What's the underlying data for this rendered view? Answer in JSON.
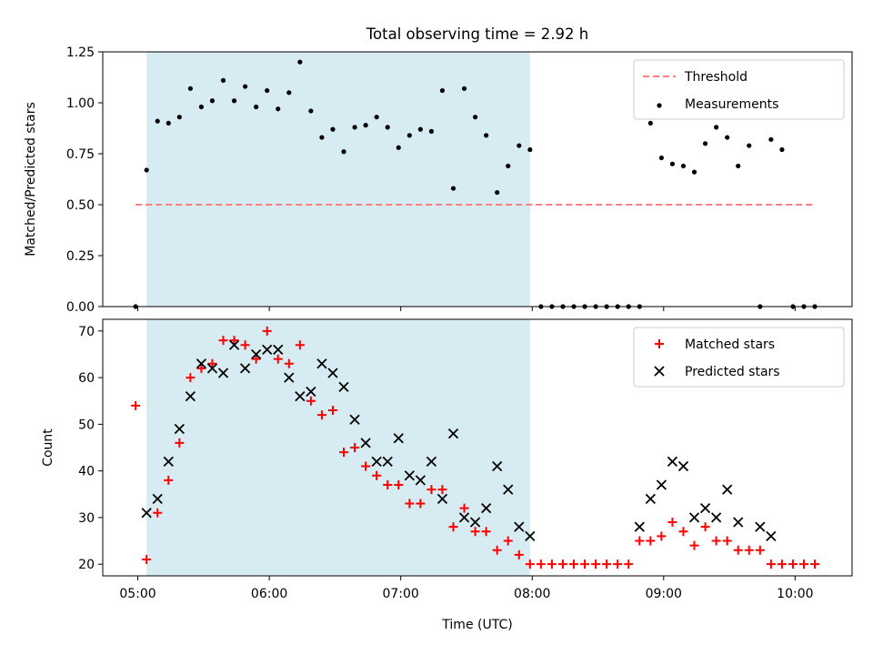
{
  "figure": {
    "suptitle": "Total observing time = 2.92 h"
  },
  "chart_data": [
    {
      "type": "scatter",
      "title": "Total observing time = 2.92 h",
      "xlabel": "",
      "ylabel": "Matched/Predicted stars",
      "xlim": [
        "04:44",
        "10:26"
      ],
      "ylim": [
        0,
        1.25
      ],
      "yticks": [
        "0.00",
        "0.25",
        "0.50",
        "0.75",
        "1.00",
        "1.25"
      ],
      "xticks": [
        "05:00",
        "06:00",
        "07:00",
        "08:00",
        "09:00",
        "10:00"
      ],
      "shaded_interval": {
        "x_start": "05:04",
        "x_end": "07:59",
        "color": "#add8e6"
      },
      "legend": {
        "placement": "top-right",
        "entries": [
          "Threshold",
          "Measurements"
        ]
      },
      "series": [
        {
          "name": "Threshold",
          "style": "dashed-line",
          "color": "#ff7f7f",
          "x": [
            "04:59",
            "10:09"
          ],
          "y": [
            0.5,
            0.5
          ]
        },
        {
          "name": "Measurements",
          "style": "points",
          "color": "#000000",
          "x": [
            "04:59",
            "05:04",
            "05:09",
            "05:14",
            "05:19",
            "05:24",
            "05:29",
            "05:34",
            "05:39",
            "05:44",
            "05:49",
            "05:54",
            "05:59",
            "06:04",
            "06:09",
            "06:14",
            "06:19",
            "06:24",
            "06:29",
            "06:34",
            "06:39",
            "06:44",
            "06:49",
            "06:54",
            "06:59",
            "07:04",
            "07:09",
            "07:14",
            "07:19",
            "07:24",
            "07:29",
            "07:34",
            "07:39",
            "07:44",
            "07:49",
            "07:54",
            "07:59",
            "08:04",
            "08:09",
            "08:14",
            "08:19",
            "08:24",
            "08:29",
            "08:34",
            "08:39",
            "08:44",
            "08:49",
            "08:54",
            "08:59",
            "09:04",
            "09:09",
            "09:14",
            "09:19",
            "09:24",
            "09:29",
            "09:34",
            "09:39",
            "09:44",
            "09:49",
            "09:54",
            "09:59",
            "10:04",
            "10:09"
          ],
          "y": [
            0,
            0.67,
            0.91,
            0.9,
            0.93,
            1.07,
            0.98,
            1.01,
            1.11,
            1.01,
            1.08,
            0.98,
            1.06,
            0.97,
            1.05,
            1.2,
            0.96,
            0.83,
            0.87,
            0.76,
            0.88,
            0.89,
            0.93,
            0.88,
            0.78,
            0.84,
            0.87,
            0.86,
            1.06,
            0.58,
            1.07,
            0.93,
            0.84,
            0.56,
            0.69,
            0.79,
            0.77,
            0,
            0,
            0,
            0,
            0,
            0,
            0,
            0,
            0,
            0,
            0.9,
            0.73,
            0.7,
            0.69,
            0.66,
            0.8,
            0.88,
            0.83,
            0.69,
            0.79,
            0,
            0.82,
            0.77,
            0,
            0,
            0
          ]
        }
      ]
    },
    {
      "type": "scatter",
      "title": "",
      "xlabel": "Time (UTC)",
      "ylabel": "Count",
      "xlim": [
        "04:44",
        "10:26"
      ],
      "ylim": [
        17.5,
        72.5
      ],
      "yticks": [
        "20",
        "30",
        "40",
        "50",
        "60",
        "70"
      ],
      "xticks": [
        "05:00",
        "06:00",
        "07:00",
        "08:00",
        "09:00",
        "10:00"
      ],
      "shaded_interval": {
        "x_start": "05:04",
        "x_end": "07:59",
        "color": "#add8e6"
      },
      "legend": {
        "placement": "top-right",
        "entries": [
          "Matched stars",
          "Predicted stars"
        ]
      },
      "series": [
        {
          "name": "Matched stars",
          "marker": "+",
          "color": "#ff0000",
          "x": [
            "04:59",
            "05:04",
            "05:09",
            "05:14",
            "05:19",
            "05:24",
            "05:29",
            "05:34",
            "05:39",
            "05:44",
            "05:49",
            "05:54",
            "05:59",
            "06:04",
            "06:09",
            "06:14",
            "06:19",
            "06:24",
            "06:29",
            "06:34",
            "06:39",
            "06:44",
            "06:49",
            "06:54",
            "06:59",
            "07:04",
            "07:09",
            "07:14",
            "07:19",
            "07:24",
            "07:29",
            "07:34",
            "07:39",
            "07:44",
            "07:49",
            "07:54",
            "07:59",
            "08:04",
            "08:09",
            "08:14",
            "08:19",
            "08:24",
            "08:29",
            "08:34",
            "08:39",
            "08:44",
            "08:49",
            "08:54",
            "08:59",
            "09:04",
            "09:09",
            "09:14",
            "09:19",
            "09:24",
            "09:29",
            "09:34",
            "09:39",
            "09:44",
            "09:49",
            "09:54",
            "09:59",
            "10:04",
            "10:09"
          ],
          "y": [
            54,
            21,
            31,
            38,
            46,
            60,
            62,
            63,
            68,
            68,
            67,
            64,
            70,
            64,
            63,
            67,
            55,
            52,
            53,
            44,
            45,
            41,
            39,
            37,
            37,
            33,
            33,
            36,
            36,
            28,
            32,
            27,
            27,
            23,
            25,
            22,
            20,
            20,
            20,
            20,
            20,
            20,
            20,
            20,
            20,
            20,
            25,
            25,
            26,
            29,
            27,
            24,
            28,
            25,
            25,
            23,
            23,
            23,
            20,
            20,
            20,
            20,
            20
          ]
        },
        {
          "name": "Predicted stars",
          "marker": "x",
          "color": "#000000",
          "x": [
            "05:04",
            "05:09",
            "05:14",
            "05:19",
            "05:24",
            "05:29",
            "05:34",
            "05:39",
            "05:44",
            "05:49",
            "05:54",
            "05:59",
            "06:04",
            "06:09",
            "06:14",
            "06:19",
            "06:24",
            "06:29",
            "06:34",
            "06:39",
            "06:44",
            "06:49",
            "06:54",
            "06:59",
            "07:04",
            "07:09",
            "07:14",
            "07:19",
            "07:24",
            "07:29",
            "07:34",
            "07:39",
            "07:44",
            "07:49",
            "07:54",
            "07:59",
            "08:49",
            "08:54",
            "08:59",
            "09:04",
            "09:09",
            "09:14",
            "09:19",
            "09:24",
            "09:29",
            "09:34",
            "09:44",
            "09:49"
          ],
          "y": [
            31,
            34,
            42,
            49,
            56,
            63,
            62,
            61,
            67,
            62,
            65,
            66,
            66,
            60,
            56,
            57,
            63,
            61,
            58,
            51,
            46,
            42,
            42,
            47,
            39,
            38,
            42,
            34,
            48,
            30,
            29,
            32,
            41,
            36,
            28,
            26,
            28,
            34,
            37,
            42,
            41,
            30,
            32,
            30,
            36,
            29,
            28,
            26
          ]
        }
      ]
    }
  ]
}
